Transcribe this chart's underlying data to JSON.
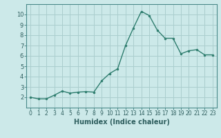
{
  "x": [
    0,
    1,
    2,
    3,
    4,
    5,
    6,
    7,
    8,
    9,
    10,
    11,
    12,
    13,
    14,
    15,
    16,
    17,
    18,
    19,
    20,
    21,
    22,
    23
  ],
  "y": [
    2.0,
    1.85,
    1.85,
    2.2,
    2.6,
    2.4,
    2.5,
    2.55,
    2.5,
    3.6,
    4.3,
    4.75,
    7.0,
    8.7,
    10.3,
    9.9,
    8.5,
    7.7,
    7.7,
    6.2,
    6.5,
    6.6,
    6.1,
    6.1
  ],
  "line_color": "#2e7d6e",
  "marker": "o",
  "marker_size": 2.0,
  "line_width": 1.0,
  "bg_color": "#cce9e9",
  "grid_color": "#aacece",
  "spine_color": "#4a8a8a",
  "tick_color": "#2e5e5e",
  "xlabel": "Humidex (Indice chaleur)",
  "xlabel_fontsize": 7,
  "xlim": [
    -0.5,
    23.5
  ],
  "ylim": [
    1.0,
    11.0
  ],
  "yticks": [
    2,
    3,
    4,
    5,
    6,
    7,
    8,
    9,
    10
  ],
  "xticks": [
    0,
    1,
    2,
    3,
    4,
    5,
    6,
    7,
    8,
    9,
    10,
    11,
    12,
    13,
    14,
    15,
    16,
    17,
    18,
    19,
    20,
    21,
    22,
    23
  ],
  "xtick_labels": [
    "0",
    "1",
    "2",
    "3",
    "4",
    "5",
    "6",
    "7",
    "8",
    "9",
    "10",
    "11",
    "12",
    "13",
    "14",
    "15",
    "16",
    "17",
    "18",
    "19",
    "20",
    "21",
    "22",
    "23"
  ],
  "tick_fontsize": 5.5,
  "ytick_fontsize": 6.0
}
